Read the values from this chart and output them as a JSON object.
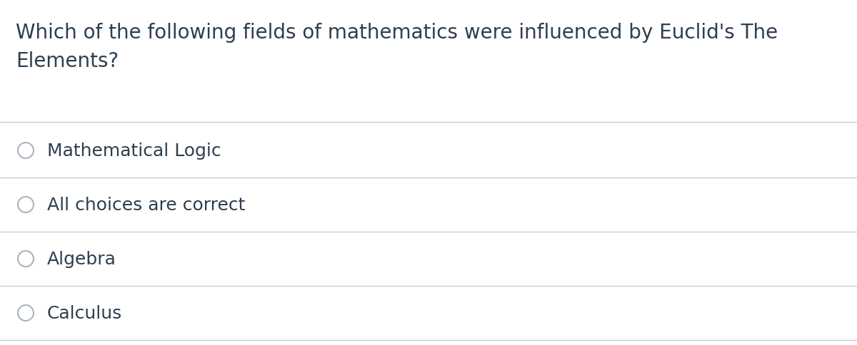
{
  "question_line1": "Which of the following fields of mathematics were influenced by Euclid's The",
  "question_line2": "Elements?",
  "choices": [
    "Mathematical Logic",
    "All choices are correct",
    "Algebra",
    "Calculus"
  ],
  "background_color": "#ffffff",
  "text_color": "#2d3e50",
  "divider_color": "#cccccc",
  "question_fontsize": 20,
  "choice_fontsize": 18,
  "circle_edge_color": "#aab4c0",
  "circle_face_color": "#ffffff",
  "fig_width": 12.0,
  "fig_height": 4.85,
  "dpi": 100
}
